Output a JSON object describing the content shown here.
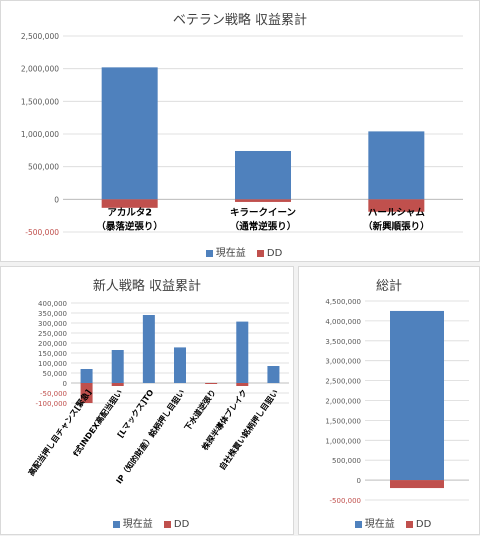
{
  "colors": {
    "current": "#4f81bd",
    "dd": "#c0504d",
    "axis_label": "#595959",
    "grid": "#d9d9d9"
  },
  "chart_data": [
    {
      "type": "bar",
      "title": "ベテラン戦略 収益累計",
      "categories": [
        [
          "アカルタ2",
          "（暴落逆張り）"
        ],
        [
          "キラークイーン",
          "（通常逆張り）"
        ],
        [
          "ハールシャム",
          "（新興順張り）"
        ]
      ],
      "series": [
        {
          "name": "現在益",
          "values": [
            2020000,
            740000,
            1040000
          ]
        },
        {
          "name": "DD",
          "values": [
            -130000,
            -40000,
            -190000
          ]
        }
      ],
      "ylim": [
        -500000,
        2500000
      ],
      "yticks": [
        -500000,
        0,
        500000,
        1000000,
        1500000,
        2000000,
        2500000
      ],
      "ytick_labels": [
        "-500,000",
        "0",
        "500,000",
        "1,000,000",
        "1,500,000",
        "2,000,000",
        "2,500,000"
      ],
      "grid": true,
      "legend_position": "bottom"
    },
    {
      "type": "bar",
      "title": "新人戦略 収益累計",
      "categories": [
        "高配当押し目チャンス[緊急]",
        "f式INDEX高配当狙い",
        "[Lマックス]TO",
        "IP（知的財産）銘柄押し目狙い",
        "下水道逆張り",
        "株探半導体ブレイク",
        "自社株買い銘柄押し目狙い"
      ],
      "series": [
        {
          "name": "現在益",
          "values": [
            70000,
            165000,
            340000,
            178000,
            0,
            307000,
            85000
          ]
        },
        {
          "name": "DD",
          "values": [
            -100000,
            -15000,
            0,
            0,
            -5000,
            -15000,
            0
          ]
        }
      ],
      "ylim": [
        -100000,
        400000
      ],
      "yticks": [
        -100000,
        -50000,
        0,
        50000,
        100000,
        150000,
        200000,
        250000,
        300000,
        350000,
        400000
      ],
      "ytick_labels": [
        "-100,000",
        "-50,000",
        "0",
        "50,000",
        "100,000",
        "150,000",
        "200,000",
        "250,000",
        "300,000",
        "350,000",
        "400,000"
      ],
      "grid": true,
      "legend_position": "bottom"
    },
    {
      "type": "bar",
      "title": "総計",
      "categories": [
        ""
      ],
      "series": [
        {
          "name": "現在益",
          "values": [
            4250000
          ]
        },
        {
          "name": "DD",
          "values": [
            -200000
          ]
        }
      ],
      "ylim": [
        -500000,
        4500000
      ],
      "yticks": [
        -500000,
        0,
        500000,
        1000000,
        1500000,
        2000000,
        2500000,
        3000000,
        3500000,
        4000000,
        4500000
      ],
      "ytick_labels": [
        "-500,000",
        "0",
        "500,000",
        "1,000,000",
        "1,500,000",
        "2,000,000",
        "2,500,000",
        "3,000,000",
        "3,500,000",
        "4,000,000",
        "4,500,000"
      ],
      "grid": true,
      "legend_position": "bottom"
    }
  ]
}
